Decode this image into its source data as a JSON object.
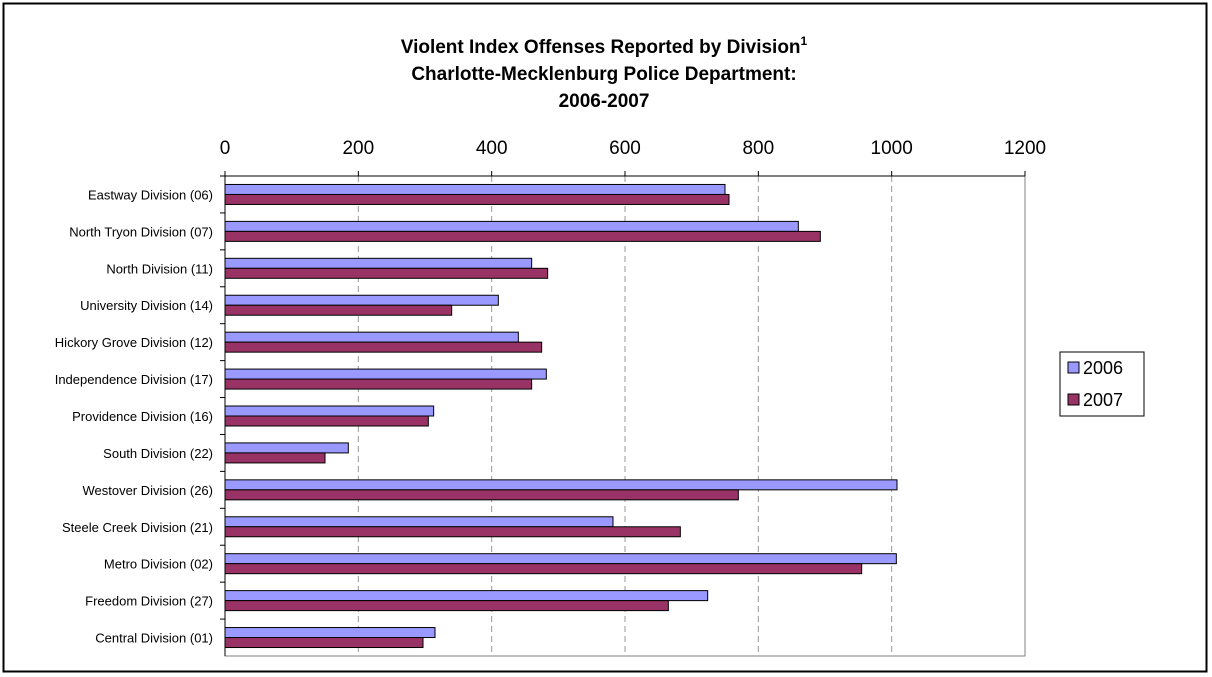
{
  "chart_data": {
    "type": "bar",
    "orientation": "horizontal",
    "title_lines": [
      "Violent Index Offenses Reported by Division",
      "Charlotte-Mecklenburg Police Department:",
      "2006-2007"
    ],
    "title_superscript": "1",
    "xlim": [
      0,
      1200
    ],
    "x_ticks": [
      "0",
      "200",
      "400",
      "600",
      "800",
      "1000",
      "1200"
    ],
    "x_axis_position": "top",
    "grid": "vertical-dashed",
    "legend_position": "right",
    "categories": [
      "Eastway Division (06)",
      "North Tryon Division (07)",
      "North Division (11)",
      "University Division (14)",
      "Hickory Grove Division (12)",
      "Independence Division (17)",
      "Providence Division (16)",
      "South Division (22)",
      "Westover Division (26)",
      "Steele Creek Division (21)",
      "Metro Division (02)",
      "Freedom Division (27)",
      "Central Division (01)"
    ],
    "series": [
      {
        "name": "2006",
        "color": "#9999ff",
        "values": [
          750,
          860,
          460,
          410,
          440,
          482,
          313,
          185,
          1008,
          582,
          1007,
          724,
          315
        ]
      },
      {
        "name": "2007",
        "color": "#993366",
        "values": [
          756,
          893,
          484,
          340,
          475,
          460,
          305,
          150,
          770,
          683,
          955,
          665,
          297
        ]
      }
    ]
  }
}
